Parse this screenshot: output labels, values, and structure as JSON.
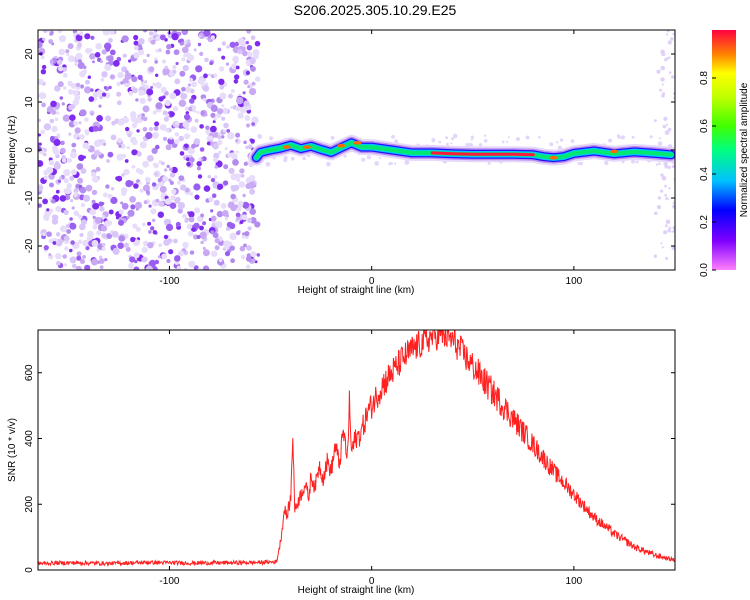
{
  "title": "S206.2025.305.10.29.E25",
  "colors": {
    "signal_line": "#ff2020",
    "noise_dots": "#8a2be2",
    "axis": "#000000"
  },
  "chart_data": [
    {
      "type": "heatmap",
      "xlabel": "Height of straight line (km)",
      "ylabel": "Frequency (Hz)",
      "xlim": [
        -165,
        150
      ],
      "ylim": [
        -25,
        25
      ],
      "x_ticks": [
        -100,
        0,
        100
      ],
      "y_ticks": [
        20,
        10,
        0,
        -10,
        -20
      ],
      "noise_region_x": [
        -165,
        -56
      ],
      "trace": {
        "x": [
          -57,
          -55,
          -50,
          -45,
          -40,
          -35,
          -30,
          -25,
          -20,
          -15,
          -10,
          -5,
          0,
          10,
          20,
          30,
          40,
          50,
          60,
          70,
          80,
          85,
          90,
          95,
          100,
          110,
          120,
          130,
          140,
          148
        ],
        "y": [
          -1.6,
          -0.5,
          0.0,
          0.4,
          1.0,
          0.3,
          0.8,
          0.1,
          -0.5,
          0.5,
          1.5,
          0.6,
          0.6,
          0.0,
          -0.6,
          -0.6,
          -0.8,
          -0.9,
          -0.9,
          -0.9,
          -1.0,
          -1.4,
          -1.6,
          -1.4,
          -0.7,
          -0.2,
          -0.8,
          -0.4,
          -0.7,
          -1.0
        ]
      },
      "colorbar": {
        "label": "Normalized spectral amplitude",
        "range": [
          0.0,
          1.0
        ],
        "ticks": [
          0.0,
          0.2,
          0.4,
          0.6,
          0.8
        ]
      }
    },
    {
      "type": "line",
      "xlabel": "Height of straight line (km)",
      "ylabel": "SNR (10 * v/v)",
      "xlim": [
        -165,
        150
      ],
      "ylim": [
        0,
        730
      ],
      "x_ticks": [
        -100,
        0,
        100
      ],
      "y_ticks": [
        0,
        200,
        400,
        600
      ],
      "series": [
        {
          "x": [
            -165,
            -150,
            -130,
            -110,
            -90,
            -70,
            -55,
            -47,
            -45,
            -43,
            -42,
            -40,
            -39,
            -38,
            -37,
            -35,
            -33,
            -31,
            -30,
            -28,
            -26,
            -24,
            -22,
            -20,
            -18,
            -16,
            -14,
            -12,
            -11,
            -10,
            -8,
            -6,
            -4,
            -2,
            0,
            5,
            10,
            15,
            20,
            25,
            30,
            35,
            40,
            45,
            50,
            55,
            60,
            70,
            80,
            90,
            100,
            110,
            120,
            130,
            140,
            150
          ],
          "y": [
            20,
            22,
            20,
            23,
            21,
            22,
            23,
            25,
            90,
            190,
            160,
            220,
            420,
            180,
            200,
            230,
            260,
            220,
            290,
            250,
            320,
            280,
            330,
            300,
            380,
            320,
            420,
            340,
            510,
            360,
            400,
            410,
            440,
            480,
            500,
            560,
            600,
            640,
            670,
            690,
            710,
            715,
            700,
            660,
            620,
            580,
            540,
            460,
            380,
            300,
            230,
            160,
            110,
            70,
            45,
            30
          ]
        }
      ]
    }
  ]
}
